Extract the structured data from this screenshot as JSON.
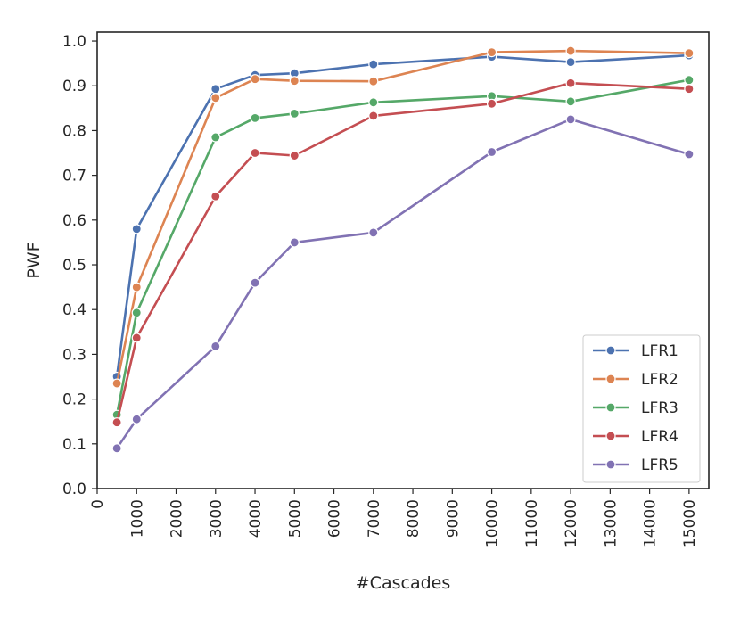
{
  "chart_data": {
    "type": "line",
    "title": "",
    "xlabel": "#Cascades",
    "ylabel": "PWF",
    "xlim": [
      0,
      15500
    ],
    "ylim": [
      0.0,
      1.02
    ],
    "x_ticks": [
      0,
      1000,
      2000,
      3000,
      4000,
      5000,
      6000,
      7000,
      8000,
      9000,
      10000,
      11000,
      12000,
      13000,
      14000,
      15000
    ],
    "y_ticks": [
      0.0,
      0.1,
      0.2,
      0.3,
      0.4,
      0.5,
      0.6,
      0.7,
      0.8,
      0.9,
      1.0
    ],
    "legend_position": "bottom-right",
    "grid": false,
    "series": [
      {
        "name": "LFR1",
        "color": "#4c72b0",
        "x": [
          500,
          1000,
          3000,
          4000,
          5000,
          7000,
          10000,
          12000,
          15000
        ],
        "y": [
          0.25,
          0.58,
          0.893,
          0.924,
          0.928,
          0.948,
          0.965,
          0.953,
          0.968
        ]
      },
      {
        "name": "LFR2",
        "color": "#dd8452",
        "x": [
          500,
          1000,
          3000,
          4000,
          5000,
          7000,
          10000,
          12000,
          15000
        ],
        "y": [
          0.235,
          0.45,
          0.873,
          0.915,
          0.911,
          0.91,
          0.975,
          0.978,
          0.973
        ]
      },
      {
        "name": "LFR3",
        "color": "#55a868",
        "x": [
          500,
          1000,
          3000,
          4000,
          5000,
          7000,
          10000,
          12000,
          15000
        ],
        "y": [
          0.165,
          0.393,
          0.785,
          0.828,
          0.838,
          0.863,
          0.877,
          0.865,
          0.913
        ]
      },
      {
        "name": "LFR4",
        "color": "#c44e52",
        "x": [
          500,
          1000,
          3000,
          4000,
          5000,
          7000,
          10000,
          12000,
          15000
        ],
        "y": [
          0.148,
          0.337,
          0.653,
          0.75,
          0.744,
          0.833,
          0.86,
          0.906,
          0.893
        ]
      },
      {
        "name": "LFR5",
        "color": "#8172b3",
        "x": [
          500,
          1000,
          3000,
          4000,
          5000,
          7000,
          10000,
          12000,
          15000
        ],
        "y": [
          0.09,
          0.155,
          0.318,
          0.46,
          0.55,
          0.572,
          0.752,
          0.825,
          0.747
        ]
      }
    ]
  }
}
